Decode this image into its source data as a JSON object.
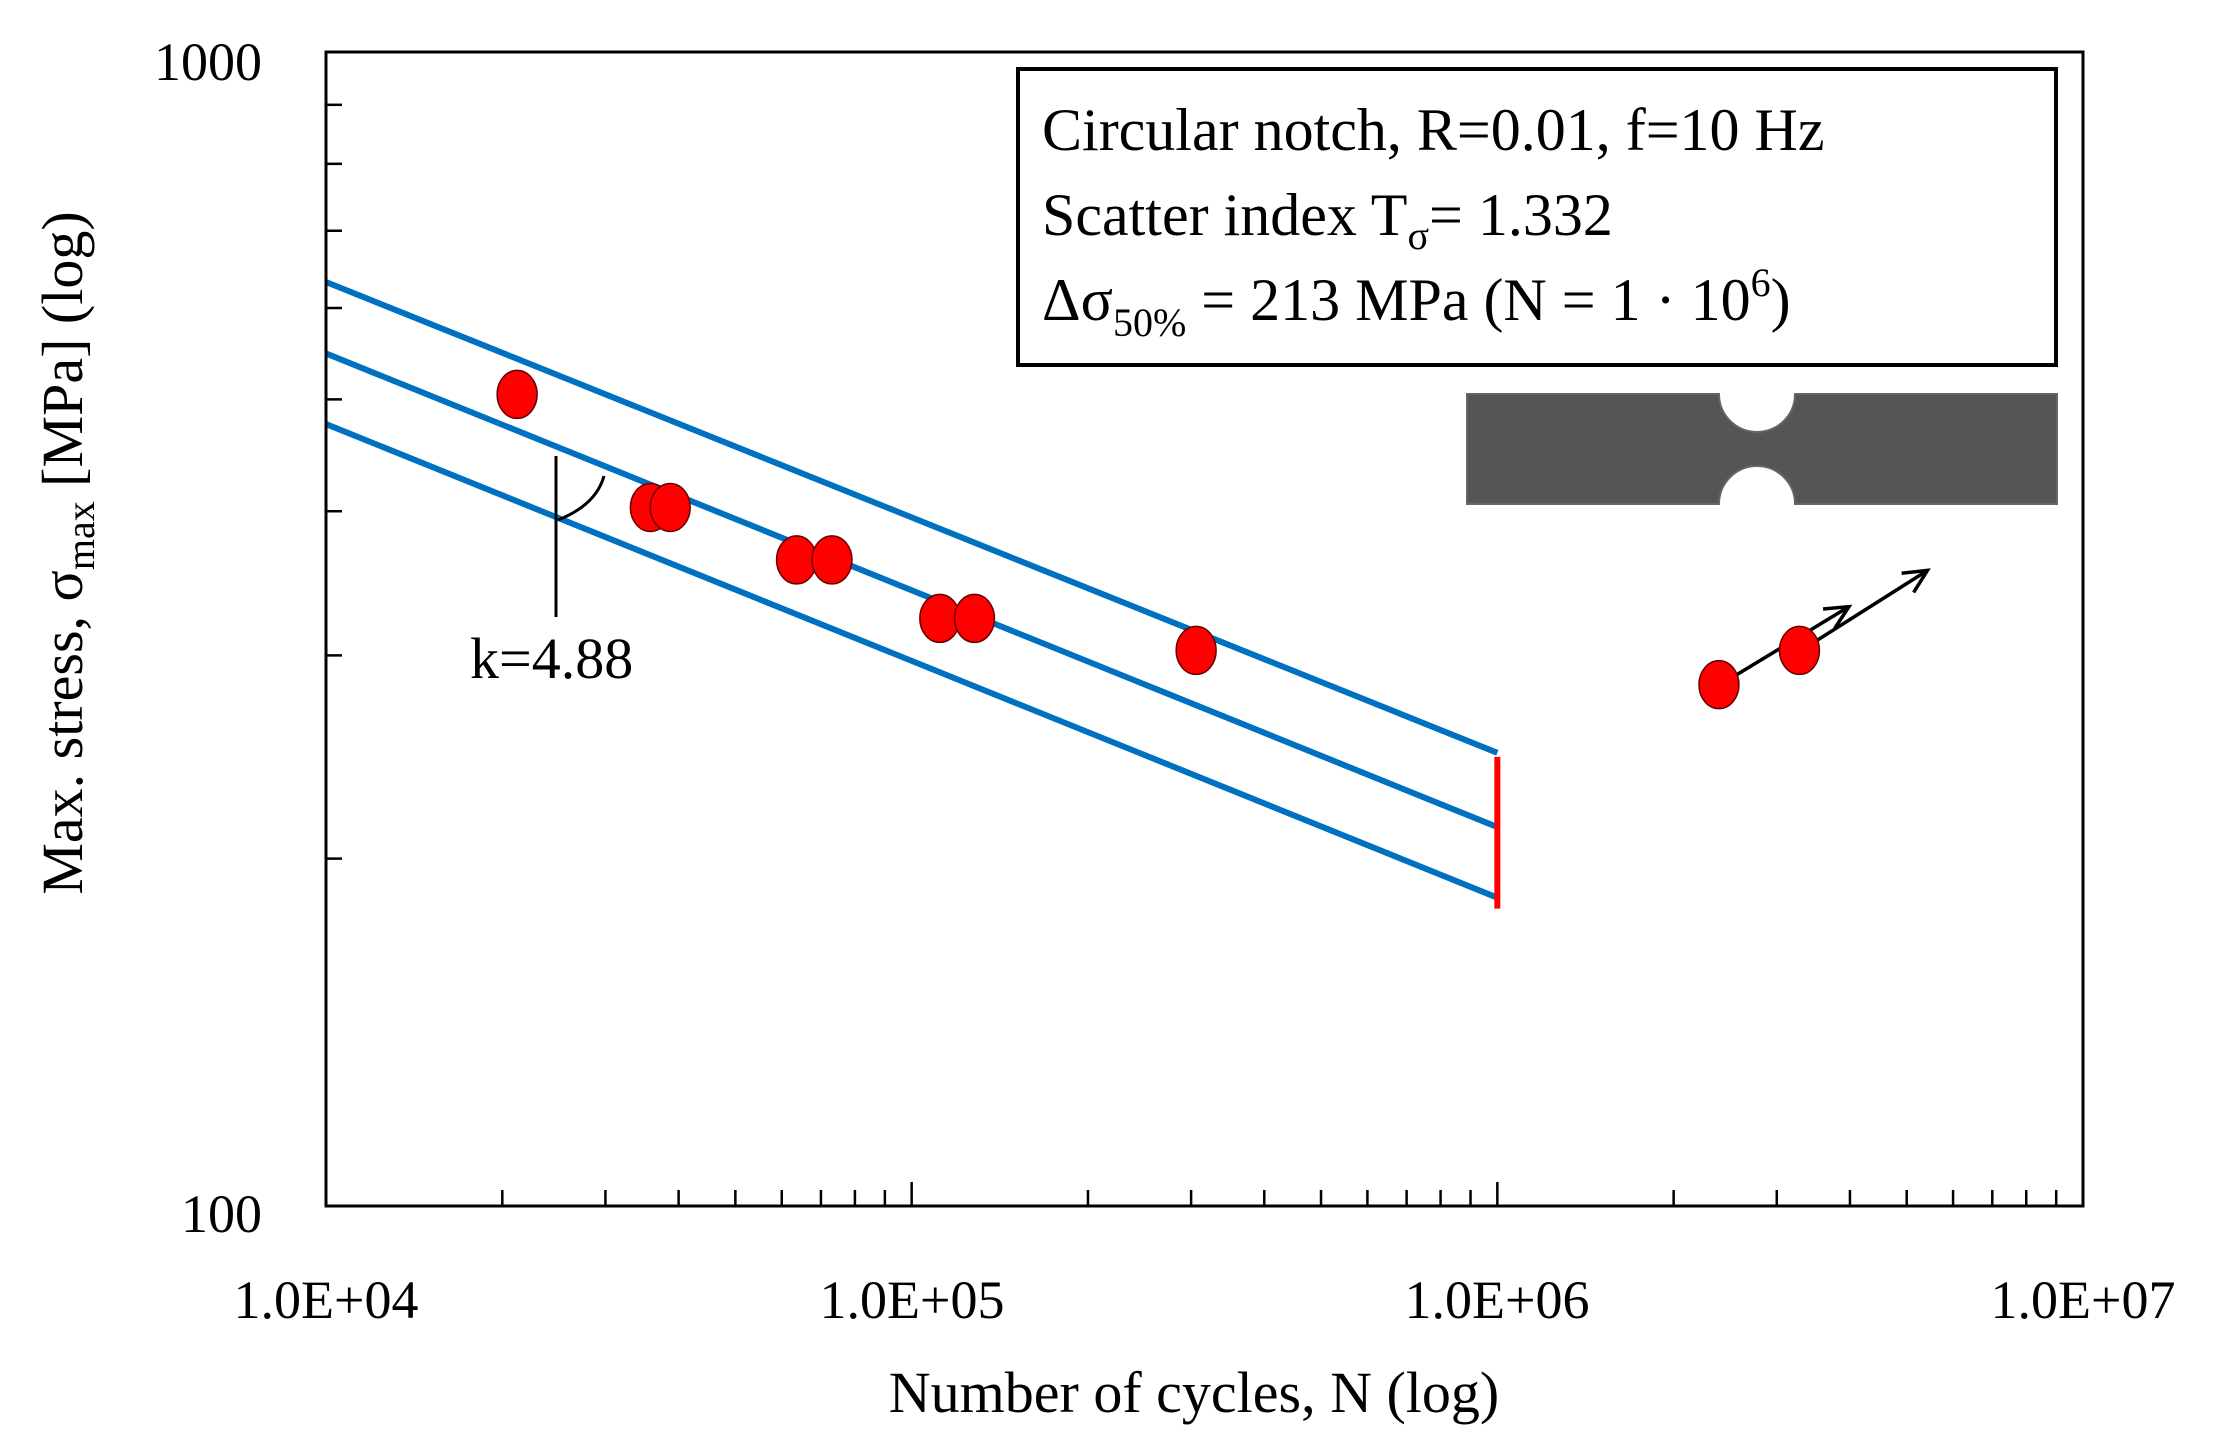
{
  "chart_data": {
    "type": "scatter",
    "title": "",
    "xlabel": "Number of cycles, N (log)",
    "ylabel": {
      "main": "Max. stress, σ",
      "sub": "max",
      "tail": " [MPa] (log)"
    },
    "xscale": "log",
    "yscale": "log",
    "xlim": [
      10000,
      10000000
    ],
    "ylim": [
      100,
      1000
    ],
    "x_tick_labels": [
      "1.0E+04",
      "1.0E+05",
      "1.0E+06",
      "1.0E+07"
    ],
    "x_tick_values": [
      10000,
      100000,
      1000000,
      10000000
    ],
    "y_tick_labels": [
      "1000",
      "100"
    ],
    "y_tick_values": [
      1000,
      100
    ],
    "grid": false,
    "series": [
      {
        "name": "Failures",
        "marker": "circle",
        "color": "#ff0000",
        "points": [
          {
            "x": 21200,
            "y": 505
          },
          {
            "x": 35800,
            "y": 403
          },
          {
            "x": 38700,
            "y": 403
          },
          {
            "x": 63600,
            "y": 363
          },
          {
            "x": 73100,
            "y": 363
          },
          {
            "x": 111700,
            "y": 323
          },
          {
            "x": 128000,
            "y": 323
          },
          {
            "x": 306000,
            "y": 303
          }
        ]
      },
      {
        "name": "Run-outs",
        "marker": "circle-arrow",
        "color": "#ff0000",
        "points": [
          {
            "x": 2390000,
            "y": 283
          },
          {
            "x": 3280000,
            "y": 303
          }
        ]
      }
    ],
    "lines": [
      {
        "name": "upper scatter band",
        "color": "#0070c0",
        "x": [
          10000,
          1000000
        ],
        "y": [
          632,
          247
        ]
      },
      {
        "name": "50% curve",
        "color": "#0070c0",
        "x": [
          10000,
          1000000
        ],
        "y": [
          548,
          213
        ]
      },
      {
        "name": "lower scatter band",
        "color": "#0070c0",
        "x": [
          10000,
          1000000
        ],
        "y": [
          476,
          185
        ]
      },
      {
        "name": "knee line",
        "color": "#ff0000",
        "x": [
          1000000,
          1000000
        ],
        "y": [
          245,
          181
        ]
      }
    ],
    "annotations": {
      "slope": "k=4.88",
      "legend_box": {
        "line1": "Circular notch, R=0.01, f=10 Hz",
        "line2": {
          "main": "Scatter index T",
          "sub": "σ",
          "tail": "= 1.332"
        },
        "line3": {
          "main": "Δσ",
          "sub": "50%",
          "mid": " = 213 MPa (N = 1 · 10",
          "sup": "6",
          "tail": ")"
        }
      },
      "legend_placement": "top-right"
    },
    "colors": {
      "marker": "#ff0000",
      "lines": "#0070c0",
      "knee": "#ff0000",
      "specimen": "#555555"
    }
  }
}
